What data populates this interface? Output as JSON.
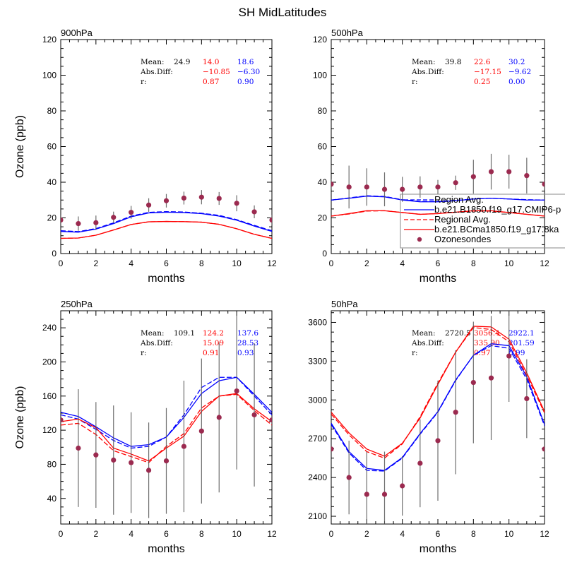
{
  "figure": {
    "title": "SH MidLatitudes",
    "colors": {
      "obs": "#9b2a4f",
      "errbar": "#555555",
      "model_red": "#ff0000",
      "model_blue": "#0000ff",
      "stat_text": "#000000"
    }
  },
  "legend": {
    "entries": [
      {
        "label": "Region Avg.",
        "color": "#0000ff",
        "style": "dashed"
      },
      {
        "label": "b.e21.B1850.f19_g17.CMIP6-p",
        "color": "#0000ff",
        "style": "solid"
      },
      {
        "label": "Regional Avg.",
        "color": "#ff0000",
        "style": "dashed"
      },
      {
        "label": "b.e21.BCma1850.f19_g17.8ka",
        "color": "#ff0000",
        "style": "solid"
      },
      {
        "label": "Ozonesondes",
        "color": "#9b2a4f",
        "style": "marker"
      }
    ]
  },
  "chart_data": [
    {
      "type": "line",
      "title": "900hPa",
      "xlabel": "months",
      "ylabel": "Ozone (ppb)",
      "xlim": [
        0,
        12
      ],
      "ylim": [
        0,
        120
      ],
      "xticks": [
        0,
        2,
        4,
        6,
        8,
        10,
        12
      ],
      "yticks": [
        0,
        20,
        40,
        60,
        80,
        100,
        120
      ],
      "x": [
        0,
        1,
        2,
        3,
        4,
        5,
        6,
        7,
        8,
        9,
        10,
        11,
        12
      ],
      "series": [
        {
          "name": "Region Avg.",
          "color": "#0000ff",
          "style": "dashed",
          "values": [
            12.8,
            12.3,
            14.0,
            17.2,
            21.0,
            23.1,
            23.5,
            23.3,
            22.6,
            21.4,
            19.0,
            15.8,
            12.8
          ]
        },
        {
          "name": "b.e21.B1850.f19_g17.CMIP6-p",
          "color": "#0000ff",
          "style": "solid",
          "values": [
            12.4,
            12.0,
            13.7,
            16.8,
            20.6,
            22.8,
            23.2,
            23.0,
            22.4,
            21.0,
            18.7,
            15.4,
            12.4
          ]
        },
        {
          "name": "Regional Avg.",
          "color": "#ff0000",
          "style": "dashed",
          "values": [
            8.5,
            8.7,
            10.3,
            13.2,
            16.3,
            17.8,
            18.0,
            17.9,
            17.6,
            16.4,
            13.9,
            10.8,
            8.5
          ]
        },
        {
          "name": "b.e21.BCma1850.f19_g17.8ka",
          "color": "#ff0000",
          "style": "solid",
          "values": [
            8.5,
            8.7,
            10.3,
            13.2,
            16.3,
            17.8,
            18.0,
            17.9,
            17.6,
            16.4,
            13.9,
            10.8,
            8.5
          ]
        },
        {
          "name": "Ozonesondes",
          "color": "#9b2a4f",
          "style": "marker",
          "values": [
            18.8,
            16.8,
            17.3,
            20.3,
            23.1,
            27.2,
            29.6,
            31.1,
            31.6,
            30.9,
            28.2,
            23.4,
            18.8
          ],
          "err": [
            3.0,
            4.0,
            4.0,
            3.2,
            3.6,
            3.8,
            3.8,
            3.6,
            4.0,
            3.6,
            4.5,
            3.6,
            3.0
          ]
        }
      ],
      "stats": {
        "mean_label": "Mean:",
        "absdiff_label": "Abs.Diff:",
        "r_label": "r:",
        "obs_mean": "24.9",
        "red": {
          "mean": "14.0",
          "absdiff": "−10.85",
          "r": "0.87"
        },
        "blue": {
          "mean": "18.6",
          "absdiff": "−6.30",
          "r": "0.90"
        }
      }
    },
    {
      "type": "line",
      "title": "500hPa",
      "xlabel": "months",
      "ylabel": "",
      "xlim": [
        0,
        12
      ],
      "ylim": [
        0,
        120
      ],
      "xticks": [
        0,
        2,
        4,
        6,
        8,
        10,
        12
      ],
      "yticks": [
        0,
        20,
        40,
        60,
        80,
        100,
        120
      ],
      "x": [
        0,
        1,
        2,
        3,
        4,
        5,
        6,
        7,
        8,
        9,
        10,
        11,
        12
      ],
      "series": [
        {
          "name": "Region Avg.",
          "color": "#0000ff",
          "style": "dashed",
          "values": [
            30.0,
            31.2,
            32.4,
            32.0,
            30.2,
            29.2,
            29.2,
            29.8,
            30.6,
            31.0,
            30.6,
            30.2,
            30.0
          ]
        },
        {
          "name": "b.e21.B1850.f19_g17.CMIP6-p",
          "color": "#0000ff",
          "style": "solid",
          "values": [
            30.0,
            31.0,
            32.2,
            31.8,
            30.0,
            29.0,
            29.0,
            29.6,
            30.6,
            31.0,
            30.6,
            30.0,
            30.0
          ]
        },
        {
          "name": "Regional Avg.",
          "color": "#ff0000",
          "style": "dashed",
          "values": [
            21.0,
            22.2,
            23.8,
            24.0,
            23.0,
            22.0,
            22.4,
            23.2,
            23.8,
            23.8,
            23.0,
            22.0,
            21.0
          ]
        },
        {
          "name": "b.e21.BCma1850.f19_g17.8ka",
          "color": "#ff0000",
          "style": "solid",
          "values": [
            21.0,
            22.4,
            24.0,
            24.0,
            23.0,
            22.0,
            22.4,
            23.2,
            24.0,
            24.0,
            23.0,
            22.0,
            21.0
          ]
        },
        {
          "name": "Ozonesondes",
          "color": "#9b2a4f",
          "style": "marker",
          "values": [
            38.9,
            37.3,
            37.3,
            36.0,
            36.0,
            37.3,
            37.3,
            39.7,
            43.1,
            45.9,
            45.9,
            43.7,
            38.9
          ],
          "err": [
            3.0,
            12.0,
            10.5,
            9.5,
            7.0,
            6.0,
            4.0,
            4.0,
            9.5,
            10.0,
            9.5,
            10.0,
            3.0
          ]
        }
      ],
      "stats": {
        "mean_label": "Mean:",
        "absdiff_label": "Abs.Diff:",
        "r_label": "r:",
        "obs_mean": "39.8",
        "red": {
          "mean": "22.6",
          "absdiff": "−17.15",
          "r": "0.25"
        },
        "blue": {
          "mean": "30.2",
          "absdiff": "−9.62",
          "r": "0.00"
        }
      },
      "legend_placement": "bottom-right"
    },
    {
      "type": "line",
      "title": "250hPa",
      "xlabel": "months",
      "ylabel": "Ozone (ppb)",
      "xlim": [
        0,
        12
      ],
      "ylim": [
        10,
        260
      ],
      "xticks": [
        0,
        2,
        4,
        6,
        8,
        10,
        12
      ],
      "yticks": [
        40,
        80,
        120,
        160,
        200,
        240
      ],
      "x": [
        0,
        1,
        2,
        3,
        4,
        5,
        6,
        7,
        8,
        9,
        10,
        11,
        12
      ],
      "series": [
        {
          "name": "Region Avg.",
          "color": "#0000ff",
          "style": "dashed",
          "values": [
            138,
            133,
            121,
            108,
            99,
            101,
            112,
            138,
            170,
            182,
            182,
            160,
            138
          ]
        },
        {
          "name": "b.e21.B1850.f19_g17.CMIP6-p",
          "color": "#0000ff",
          "style": "solid",
          "values": [
            141,
            136,
            124,
            111,
            101,
            103,
            112,
            135,
            163,
            178,
            182,
            162,
            141
          ]
        },
        {
          "name": "Regional Avg.",
          "color": "#ff0000",
          "style": "dashed",
          "values": [
            126,
            128,
            115,
            96,
            89,
            82,
            101,
            116,
            146,
            160,
            162,
            143,
            126
          ]
        },
        {
          "name": "b.e21.BCma1850.f19_g17.8ka",
          "color": "#ff0000",
          "style": "solid",
          "values": [
            130,
            133,
            123,
            99,
            92,
            84,
            99,
            113,
            142,
            160,
            163,
            145,
            130
          ]
        },
        {
          "name": "Ozonesondes",
          "color": "#9b2a4f",
          "style": "marker",
          "values": [
            132,
            99,
            91,
            85,
            82,
            73,
            84,
            101,
            119,
            135,
            166,
            138,
            132
          ],
          "err": [
            4,
            69,
            62,
            64,
            59,
            56,
            62,
            77,
            85,
            88,
            92,
            84,
            4
          ]
        }
      ],
      "stats": {
        "mean_label": "Mean:",
        "absdiff_label": "Abs.Diff:",
        "r_label": "r:",
        "obs_mean": "109.1",
        "red": {
          "mean": "124.2",
          "absdiff": "15.09",
          "r": "0.91"
        },
        "blue": {
          "mean": "137.6",
          "absdiff": "28.53",
          "r": "0.93"
        }
      }
    },
    {
      "type": "line",
      "title": "50hPa",
      "xlabel": "months",
      "ylabel": "",
      "xlim": [
        0,
        12
      ],
      "ylim": [
        2040,
        3690
      ],
      "xticks": [
        0,
        2,
        4,
        6,
        8,
        10,
        12
      ],
      "yticks": [
        2100,
        2400,
        2700,
        3000,
        3300,
        3600
      ],
      "x": [
        0,
        1,
        2,
        3,
        4,
        5,
        6,
        7,
        8,
        9,
        10,
        11,
        12
      ],
      "series": [
        {
          "name": "Region Avg.",
          "color": "#0000ff",
          "style": "dashed",
          "values": [
            2810,
            2590,
            2455,
            2450,
            2550,
            2735,
            2905,
            3150,
            3345,
            3420,
            3400,
            3160,
            2800
          ]
        },
        {
          "name": "b.e21.B1850.f19_g17.CMIP6-p",
          "color": "#0000ff",
          "style": "solid",
          "values": [
            2820,
            2600,
            2470,
            2455,
            2555,
            2740,
            2910,
            3155,
            3345,
            3435,
            3420,
            3180,
            2810
          ]
        },
        {
          "name": "Regional Avg.",
          "color": "#ff0000",
          "style": "dashed",
          "values": [
            2890,
            2730,
            2600,
            2550,
            2660,
            2870,
            3130,
            3370,
            3560,
            3545,
            3450,
            3190,
            2900
          ]
        },
        {
          "name": "b.e21.BCma1850.f19_g17.8ka",
          "color": "#ff0000",
          "style": "solid",
          "values": [
            2905,
            2745,
            2620,
            2565,
            2665,
            2860,
            3120,
            3370,
            3570,
            3565,
            3470,
            3210,
            2910
          ]
        },
        {
          "name": "Ozonesondes",
          "color": "#9b2a4f",
          "style": "marker",
          "values": [
            2620,
            2400,
            2270,
            2270,
            2335,
            2510,
            2685,
            2905,
            3135,
            3170,
            3340,
            3010,
            2620
          ],
          "err": [
            4,
            285,
            330,
            330,
            230,
            340,
            465,
            480,
            470,
            480,
            355,
            305,
            4
          ]
        }
      ],
      "stats": {
        "mean_label": "Mean:",
        "absdiff_label": "Abs.Diff:",
        "r_label": "r:",
        "obs_mean": "2720.5",
        "red": {
          "mean": "3056.4",
          "absdiff": "335.90",
          "r": "0.97"
        },
        "blue": {
          "mean": "2922.1",
          "absdiff": "201.59",
          "r": "0.99"
        }
      }
    }
  ]
}
